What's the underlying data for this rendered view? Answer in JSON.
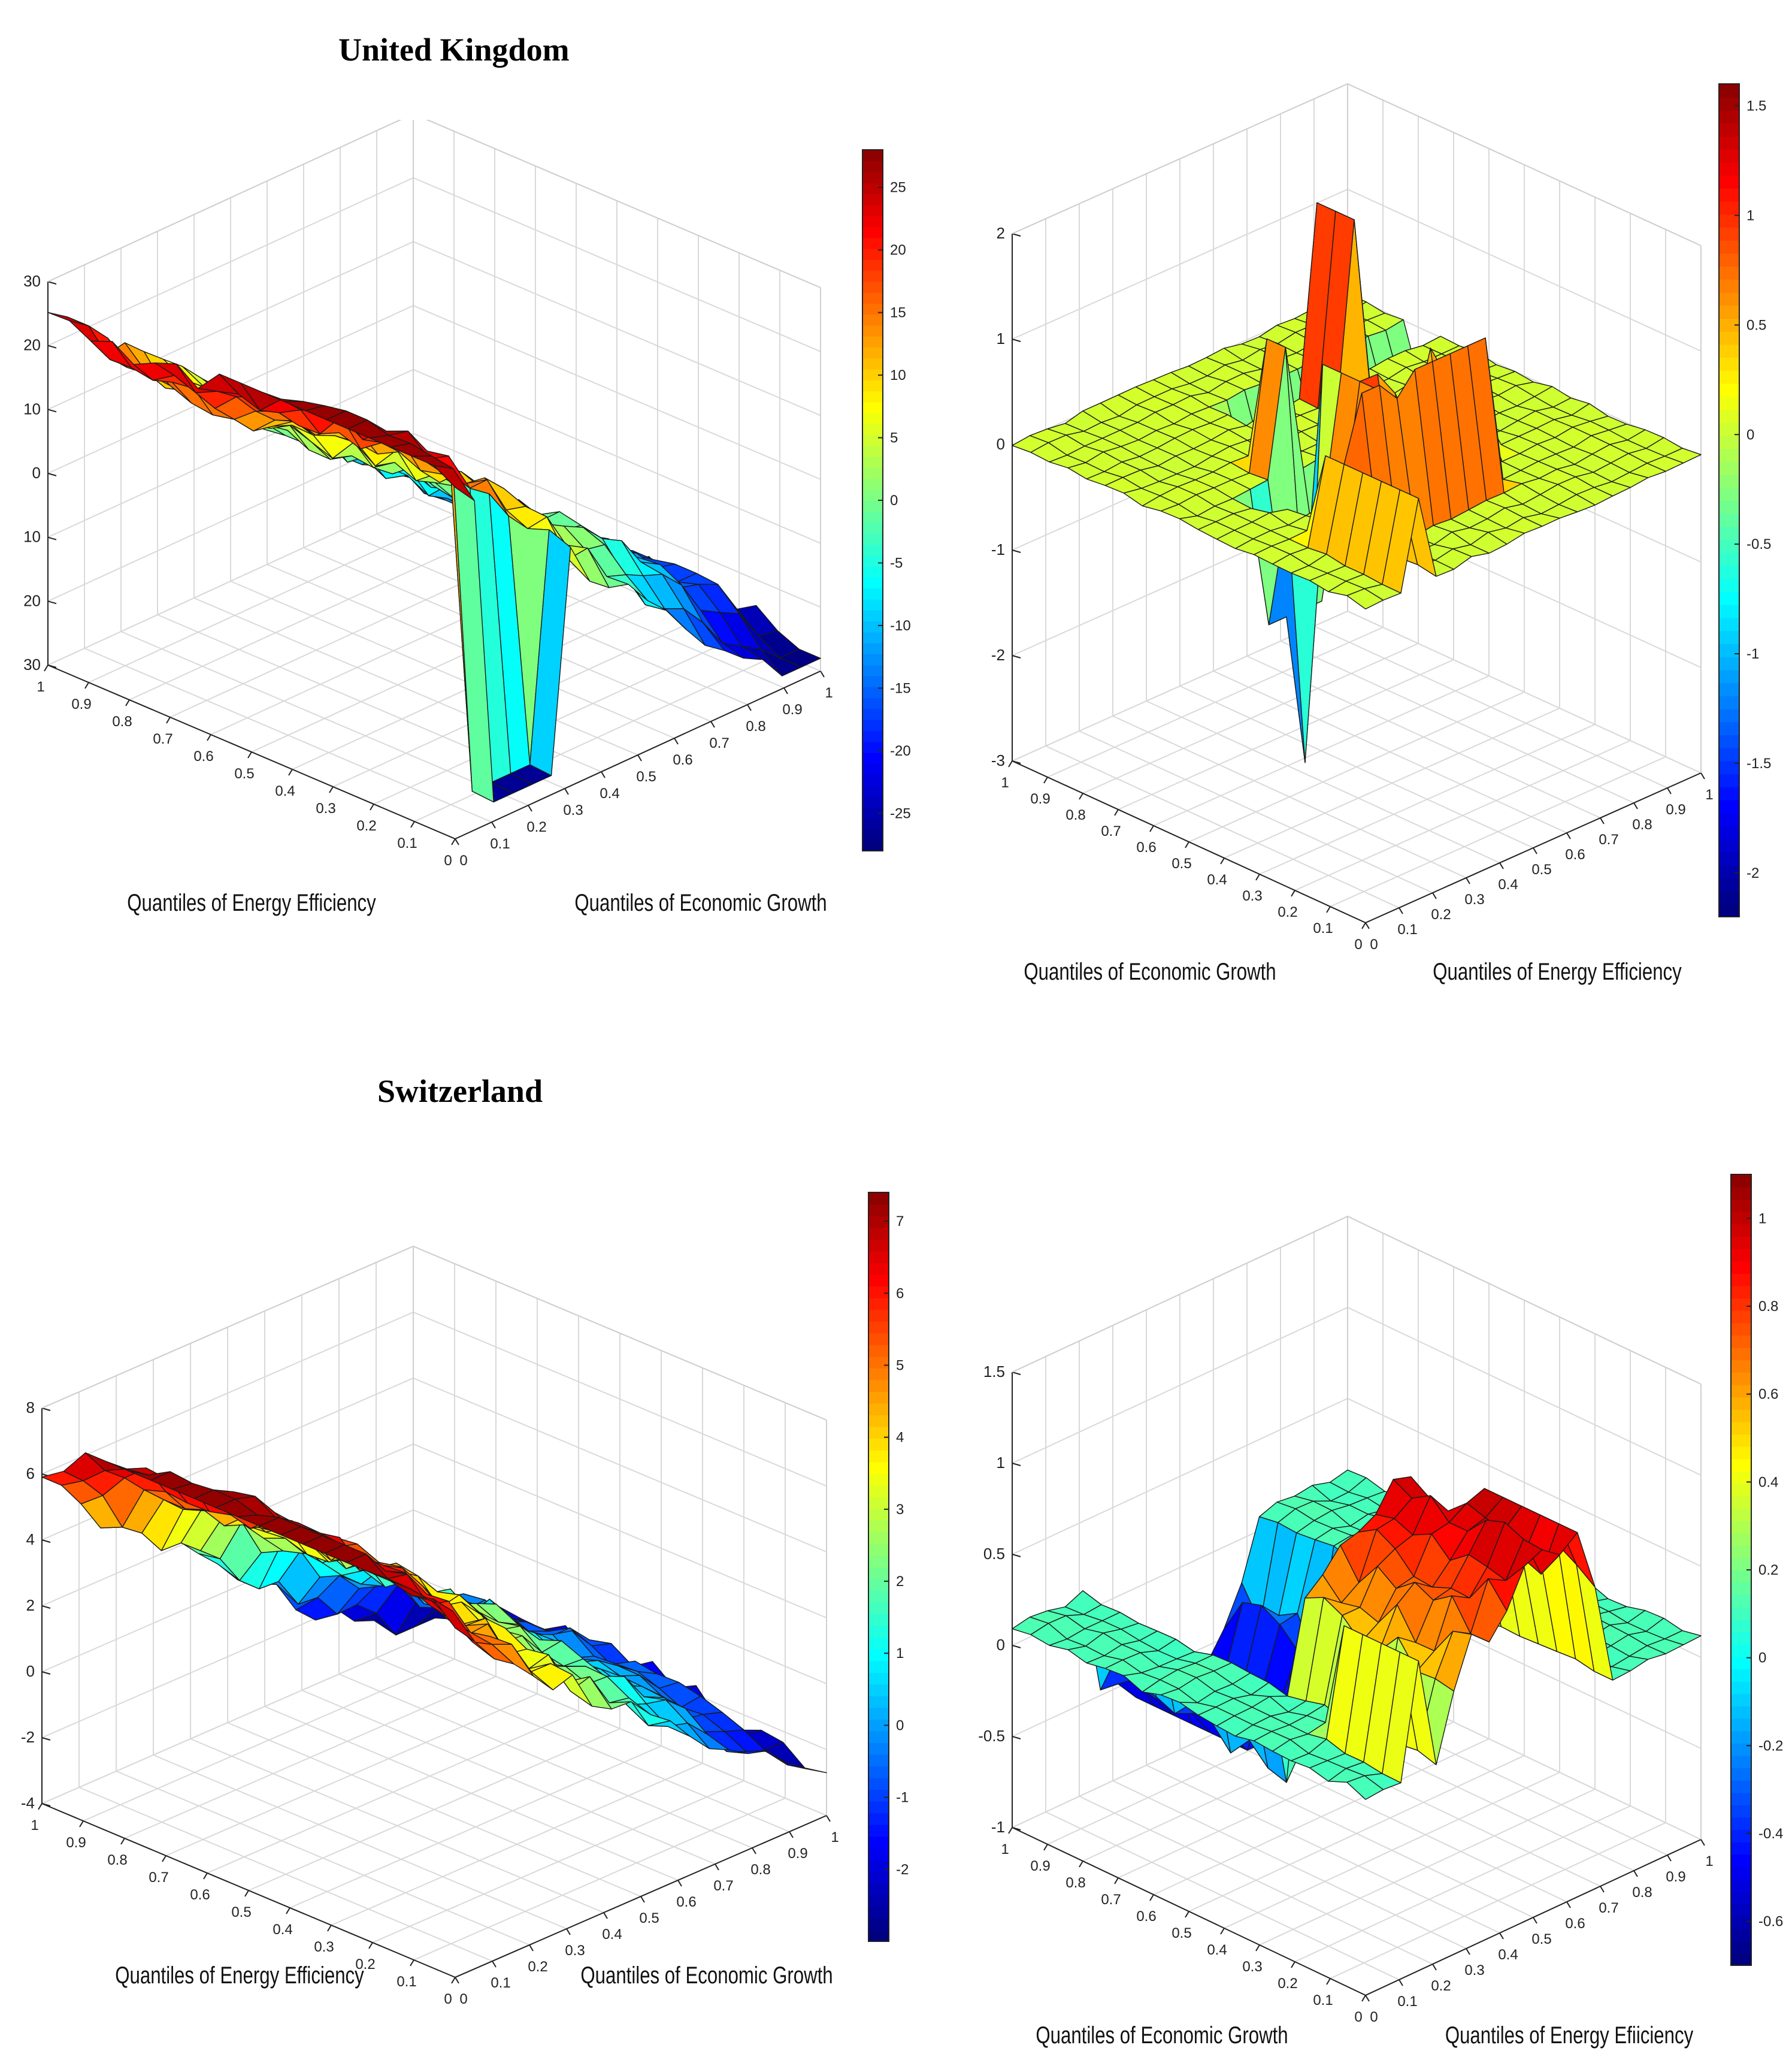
{
  "headings": {
    "uk": "United Kingdom",
    "ch": "Switzerland"
  },
  "colors": {
    "colormap": "jet",
    "edge": "#1a1a1a",
    "grid": "#d9d9d9",
    "box": "#cfcfcf"
  },
  "chart_data": [
    {
      "type": "surface",
      "panel": "uk-left",
      "title": "United Kingdom",
      "xlabel": "Quantiles of Energy Efficiency",
      "ylabel": "Quantiles of Economic Growth",
      "zlim": [
        -30,
        30
      ],
      "zticks": [
        "-30",
        "-20",
        "-10",
        "0",
        "10",
        "20",
        "30"
      ],
      "xticks": [
        "0",
        "0.1",
        "0.2",
        "0.3",
        "0.4",
        "0.5",
        "0.6",
        "0.7",
        "0.8",
        "0.9",
        "1"
      ],
      "yticks": [
        "0",
        "0.1",
        "0.2",
        "0.3",
        "0.4",
        "0.5",
        "0.6",
        "0.7",
        "0.8",
        "0.9",
        "1"
      ],
      "colorbar": {
        "min": -28,
        "max": 28,
        "ticks": [
          "-25",
          "-20",
          "-15",
          "-10",
          "-5",
          "0",
          "5",
          "10",
          "15",
          "20",
          "25"
        ]
      },
      "grid_resolution": 19,
      "shape": "terraced",
      "z_range_observed": [
        -27,
        27
      ]
    },
    {
      "type": "surface",
      "panel": "uk-right",
      "title": "",
      "xlabel": "Quantiles of Economic Growth",
      "ylabel": "Quantiles of Energy Efficiency",
      "zlim": [
        -3,
        2
      ],
      "zticks": [
        "-3",
        "-2",
        "-1",
        "0",
        "1",
        "2"
      ],
      "xticks": [
        "0",
        "0.1",
        "0.2",
        "0.3",
        "0.4",
        "0.5",
        "0.6",
        "0.7",
        "0.8",
        "0.9",
        "1"
      ],
      "yticks": [
        "0",
        "0.1",
        "0.2",
        "0.3",
        "0.4",
        "0.5",
        "0.6",
        "0.7",
        "0.8",
        "0.9",
        "1"
      ],
      "colorbar": {
        "min": -2.2,
        "max": 1.6,
        "ticks": [
          "-2",
          "-1.5",
          "-1",
          "-0.5",
          "0",
          "0.5",
          "1",
          "1.5"
        ]
      },
      "grid_resolution": 19,
      "shape": "spiky",
      "z_range_observed": [
        -2.5,
        1.9
      ]
    },
    {
      "type": "surface",
      "panel": "ch-left",
      "title": "Switzerland",
      "xlabel": "Quantiles of Energy Efficiency",
      "ylabel": "Quantiles of Economic Growth",
      "zlim": [
        -4,
        8
      ],
      "zticks": [
        "-4",
        "-2",
        "0",
        "2",
        "4",
        "6",
        "8"
      ],
      "xticks": [
        "0",
        "0.1",
        "0.2",
        "0.3",
        "0.4",
        "0.5",
        "0.6",
        "0.7",
        "0.8",
        "0.9",
        "1"
      ],
      "yticks": [
        "0",
        "0.1",
        "0.2",
        "0.3",
        "0.4",
        "0.5",
        "0.6",
        "0.7",
        "0.8",
        "0.9",
        "1"
      ],
      "colorbar": {
        "min": -3,
        "max": 7.4,
        "ticks": [
          "-2",
          "-1",
          "0",
          "1",
          "2",
          "3",
          "4",
          "5",
          "6",
          "7"
        ]
      },
      "grid_resolution": 19,
      "shape": "dome",
      "z_range_observed": [
        -3,
        7.2
      ]
    },
    {
      "type": "surface",
      "panel": "ch-right",
      "title": "",
      "xlabel": "Quantiles of Economic Growth",
      "ylabel": "Quantiles of Energy Efiiciency",
      "zlim": [
        -1,
        1.5
      ],
      "zticks": [
        "-1",
        "-0.5",
        "0",
        "0.5",
        "1",
        "1.5"
      ],
      "xticks": [
        "0",
        "0.1",
        "0.2",
        "0.3",
        "0.4",
        "0.5",
        "0.6",
        "0.7",
        "0.8",
        "0.9",
        "1"
      ],
      "yticks": [
        "0",
        "0.1",
        "0.2",
        "0.3",
        "0.4",
        "0.5",
        "0.6",
        "0.7",
        "0.8",
        "0.9",
        "1"
      ],
      "colorbar": {
        "min": -0.7,
        "max": 1.1,
        "ticks": [
          "-0.6",
          "-0.4",
          "-0.2",
          "0",
          "0.2",
          "0.4",
          "0.6",
          "0.8",
          "1"
        ]
      },
      "grid_resolution": 19,
      "shape": "wall",
      "z_range_observed": [
        -0.7,
        1.1
      ]
    }
  ]
}
